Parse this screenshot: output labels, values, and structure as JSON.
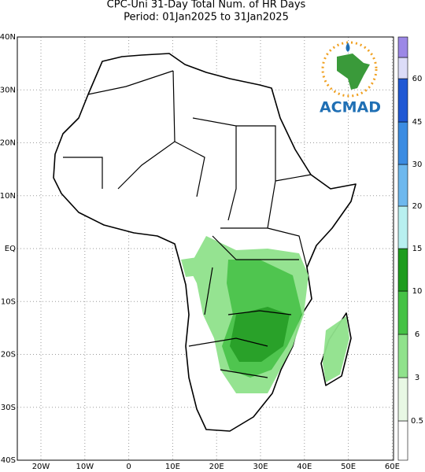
{
  "header": {
    "title": "CPC-Uni 31-Day Total Num. of HR Days",
    "subtitle": "Period: 01Jan2025 to 31Jan2025"
  },
  "map": {
    "lon_labels": [
      "20W",
      "10W",
      "0",
      "10E",
      "20E",
      "30E",
      "40E",
      "50E",
      "60E"
    ],
    "lat_labels": [
      "40N",
      "30N",
      "20N",
      "10N",
      "EQ",
      "10S",
      "20S",
      "30S",
      "40S"
    ],
    "logo": "ACMAD"
  },
  "colorbar": {
    "labels": [
      "0.5",
      "3",
      "6",
      "10",
      "15",
      "20",
      "30",
      "45",
      "60"
    ],
    "colors": [
      "#ffffff",
      "#e8f8e4",
      "#90e28c",
      "#46c246",
      "#1e9c1e",
      "#b8f0f0",
      "#6eb8ee",
      "#3c8ce2",
      "#2058d4",
      "#dcdcf8",
      "#9c88e6",
      "#6c54d2"
    ]
  }
}
